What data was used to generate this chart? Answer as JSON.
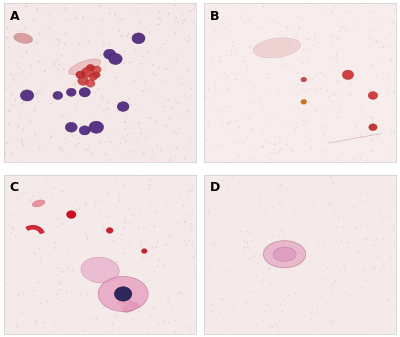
{
  "panels": [
    "A",
    "B",
    "C",
    "D"
  ],
  "bg_color_A": "#f5e8e8",
  "bg_color_B": "#f7eded",
  "bg_color_C": "#f5eaea",
  "bg_color_D": "#f5eaea",
  "label_fontsize": 9,
  "label_fontweight": "bold",
  "outer_bg": "#ffffff",
  "gap_color": "#ffffff"
}
